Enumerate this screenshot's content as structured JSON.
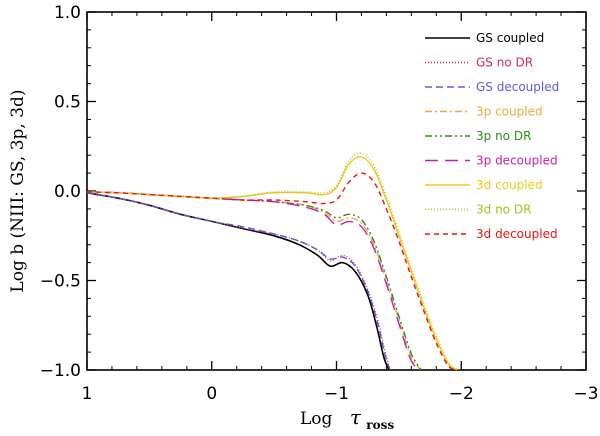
{
  "chart_data": {
    "type": "line",
    "title": "",
    "xlabel": "Log",
    "xlabel_symbol": "τ",
    "xlabel_sub": "ross",
    "ylabel": "Log    b (NIII: GS, 3p, 3d)",
    "xlim": [
      1,
      -3
    ],
    "ylim": [
      -1.0,
      1.0
    ],
    "x_ticks": [
      1,
      0,
      -1,
      -2,
      -3
    ],
    "x_tick_labels": [
      "1",
      "0",
      "−1",
      "−2",
      "−3"
    ],
    "y_ticks": [
      1.0,
      0.5,
      0.0,
      -0.5,
      -1.0
    ],
    "y_tick_labels": [
      "1.0",
      "0.5",
      "0.0",
      "−0.5",
      "−1.0"
    ],
    "legend_position": "top-right",
    "series": [
      {
        "name": "GS coupled",
        "color": "#000000",
        "dash": "solid",
        "x": [
          1.0,
          0.75,
          0.5,
          0.25,
          0.0,
          -0.25,
          -0.5,
          -0.7,
          -0.85,
          -0.95,
          -1.05,
          -1.15,
          -1.25,
          -1.32,
          -1.38,
          -1.42
        ],
        "y": [
          -0.01,
          -0.04,
          -0.08,
          -0.13,
          -0.17,
          -0.21,
          -0.25,
          -0.3,
          -0.36,
          -0.42,
          -0.4,
          -0.45,
          -0.58,
          -0.75,
          -0.93,
          -1.0
        ]
      },
      {
        "name": "GS no DR",
        "color": "#d62a54",
        "dash": "1,2",
        "x": [
          1.0,
          0.75,
          0.5,
          0.25,
          0.0,
          -0.25,
          -0.5,
          -0.7,
          -0.85,
          -0.95,
          -1.05,
          -1.15,
          -1.25,
          -1.33,
          -1.39,
          -1.43
        ],
        "y": [
          -0.01,
          -0.04,
          -0.08,
          -0.13,
          -0.17,
          -0.21,
          -0.24,
          -0.28,
          -0.33,
          -0.39,
          -0.36,
          -0.41,
          -0.55,
          -0.72,
          -0.9,
          -1.0
        ]
      },
      {
        "name": "GS decoupled",
        "color": "#5b5bd6",
        "dash": "7,4",
        "x": [
          1.0,
          0.75,
          0.5,
          0.25,
          0.0,
          -0.25,
          -0.5,
          -0.7,
          -0.85,
          -0.95,
          -1.05,
          -1.15,
          -1.25,
          -1.33,
          -1.39,
          -1.43
        ],
        "y": [
          -0.01,
          -0.04,
          -0.08,
          -0.13,
          -0.17,
          -0.2,
          -0.24,
          -0.28,
          -0.33,
          -0.38,
          -0.37,
          -0.42,
          -0.56,
          -0.74,
          -0.92,
          -1.0
        ]
      },
      {
        "name": "3p coupled",
        "color": "#f2a53c",
        "dash": "7,3,2,3",
        "x": [
          1.0,
          0.75,
          0.5,
          0.25,
          0.0,
          -0.25,
          -0.5,
          -0.75,
          -0.9,
          -1.0,
          -1.1,
          -1.2,
          -1.3,
          -1.4,
          -1.5,
          -1.6,
          -1.68
        ],
        "y": [
          -0.005,
          -0.01,
          -0.02,
          -0.03,
          -0.04,
          -0.05,
          -0.06,
          -0.08,
          -0.12,
          -0.17,
          -0.15,
          -0.18,
          -0.3,
          -0.5,
          -0.72,
          -0.93,
          -1.0
        ]
      },
      {
        "name": "3p no DR",
        "color": "#2e8b1f",
        "dash": "7,3,2,3,2,3",
        "x": [
          1.0,
          0.75,
          0.5,
          0.25,
          0.0,
          -0.25,
          -0.5,
          -0.75,
          -0.9,
          -1.0,
          -1.1,
          -1.2,
          -1.3,
          -1.4,
          -1.5,
          -1.6,
          -1.68
        ],
        "y": [
          -0.005,
          -0.01,
          -0.02,
          -0.03,
          -0.04,
          -0.05,
          -0.06,
          -0.08,
          -0.11,
          -0.15,
          -0.13,
          -0.16,
          -0.28,
          -0.48,
          -0.7,
          -0.91,
          -1.0
        ]
      },
      {
        "name": "3p decoupled",
        "color": "#c41fb4",
        "dash": "13,7",
        "x": [
          1.0,
          0.75,
          0.5,
          0.25,
          0.0,
          -0.25,
          -0.5,
          -0.75,
          -0.9,
          -1.0,
          -1.1,
          -1.2,
          -1.3,
          -1.4,
          -1.5,
          -1.6,
          -1.68
        ],
        "y": [
          -0.005,
          -0.01,
          -0.02,
          -0.03,
          -0.04,
          -0.05,
          -0.06,
          -0.09,
          -0.13,
          -0.19,
          -0.17,
          -0.2,
          -0.32,
          -0.52,
          -0.74,
          -0.95,
          -1.0
        ]
      },
      {
        "name": "3d coupled",
        "color": "#f5c61a",
        "dash": "solid",
        "x": [
          1.0,
          0.75,
          0.5,
          0.25,
          0.0,
          -0.25,
          -0.5,
          -0.75,
          -0.9,
          -1.0,
          -1.1,
          -1.2,
          -1.3,
          -1.4,
          -1.5,
          -1.6,
          -1.7,
          -1.8,
          -1.9,
          -1.98
        ],
        "y": [
          -0.005,
          -0.01,
          -0.02,
          -0.03,
          -0.04,
          -0.03,
          -0.01,
          -0.01,
          -0.02,
          0.02,
          0.15,
          0.19,
          0.12,
          -0.05,
          -0.25,
          -0.45,
          -0.65,
          -0.83,
          -0.97,
          -1.0
        ]
      },
      {
        "name": "3d no DR",
        "color": "#a2c71a",
        "dash": "1,2",
        "x": [
          1.0,
          0.75,
          0.5,
          0.25,
          0.0,
          -0.25,
          -0.5,
          -0.75,
          -0.9,
          -1.0,
          -1.1,
          -1.2,
          -1.3,
          -1.4,
          -1.5,
          -1.6,
          -1.7,
          -1.8,
          -1.9,
          -1.98
        ],
        "y": [
          -0.005,
          -0.01,
          -0.02,
          -0.03,
          -0.04,
          -0.03,
          -0.005,
          -0.005,
          -0.01,
          0.03,
          0.17,
          0.21,
          0.14,
          -0.03,
          -0.23,
          -0.43,
          -0.63,
          -0.81,
          -0.96,
          -1.0
        ]
      },
      {
        "name": "3d decoupled",
        "color": "#e8140f",
        "dash": "5,4",
        "x": [
          1.0,
          0.75,
          0.5,
          0.25,
          0.0,
          -0.25,
          -0.5,
          -0.75,
          -0.9,
          -1.0,
          -1.1,
          -1.2,
          -1.3,
          -1.4,
          -1.5,
          -1.6,
          -1.7,
          -1.8,
          -1.9,
          -1.98
        ],
        "y": [
          -0.005,
          -0.01,
          -0.02,
          -0.03,
          -0.04,
          -0.05,
          -0.05,
          -0.06,
          -0.07,
          -0.05,
          0.05,
          0.1,
          0.05,
          -0.1,
          -0.28,
          -0.48,
          -0.67,
          -0.85,
          -0.98,
          -1.0
        ]
      }
    ]
  }
}
